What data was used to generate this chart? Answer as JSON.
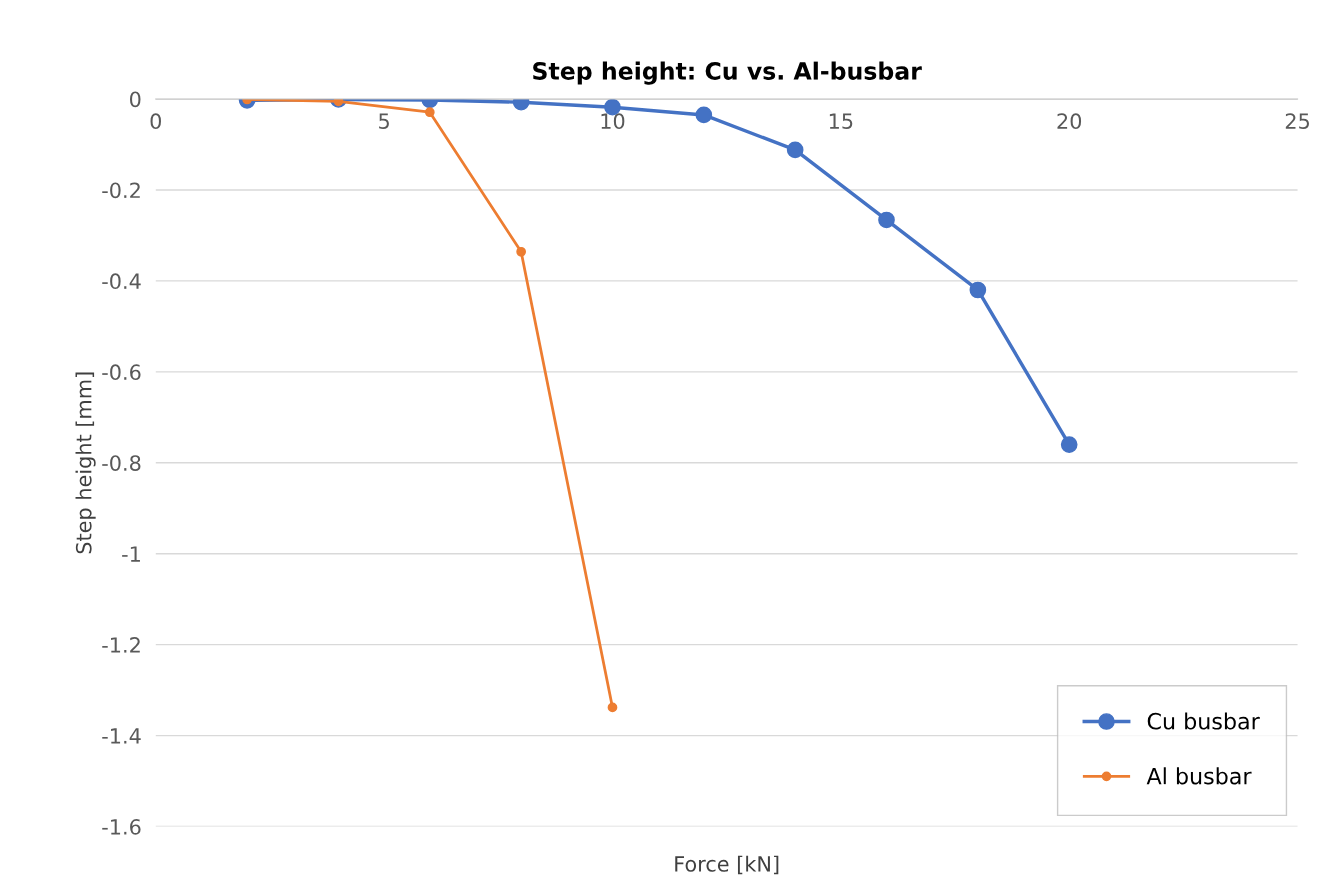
{
  "chart_data": {
    "type": "line",
    "title": "Step height: Cu vs. Al-busbar",
    "xlabel": "Force [kN]",
    "ylabel": "Step height [mm]",
    "xlim": [
      0,
      25
    ],
    "xticks": [
      0,
      5,
      10,
      15,
      20,
      25
    ],
    "ylim": [
      -1.6,
      0
    ],
    "yticks": [
      -1.6,
      -1.4,
      -1.2,
      -1,
      -0.8,
      -0.6,
      -0.4,
      -0.2,
      0
    ],
    "grid": "y",
    "legend": "bottom right",
    "marker": "circle",
    "line_style": "solid",
    "series": [
      {
        "name": "Cu busbar",
        "color": "#4472c4",
        "x": [
          2,
          4,
          6,
          8,
          10,
          12,
          14,
          16,
          18,
          20
        ],
        "values": [
          -0.003,
          -0.001,
          -0.002,
          -0.007,
          -0.018,
          -0.035,
          -0.112,
          -0.266,
          -0.42,
          -0.76
        ]
      },
      {
        "name": "Al busbar",
        "color": "#ed7d31",
        "x": [
          2,
          4,
          6,
          8,
          10
        ],
        "values": [
          -0.001,
          -0.005,
          -0.029,
          -0.336,
          -1.338
        ]
      }
    ]
  }
}
